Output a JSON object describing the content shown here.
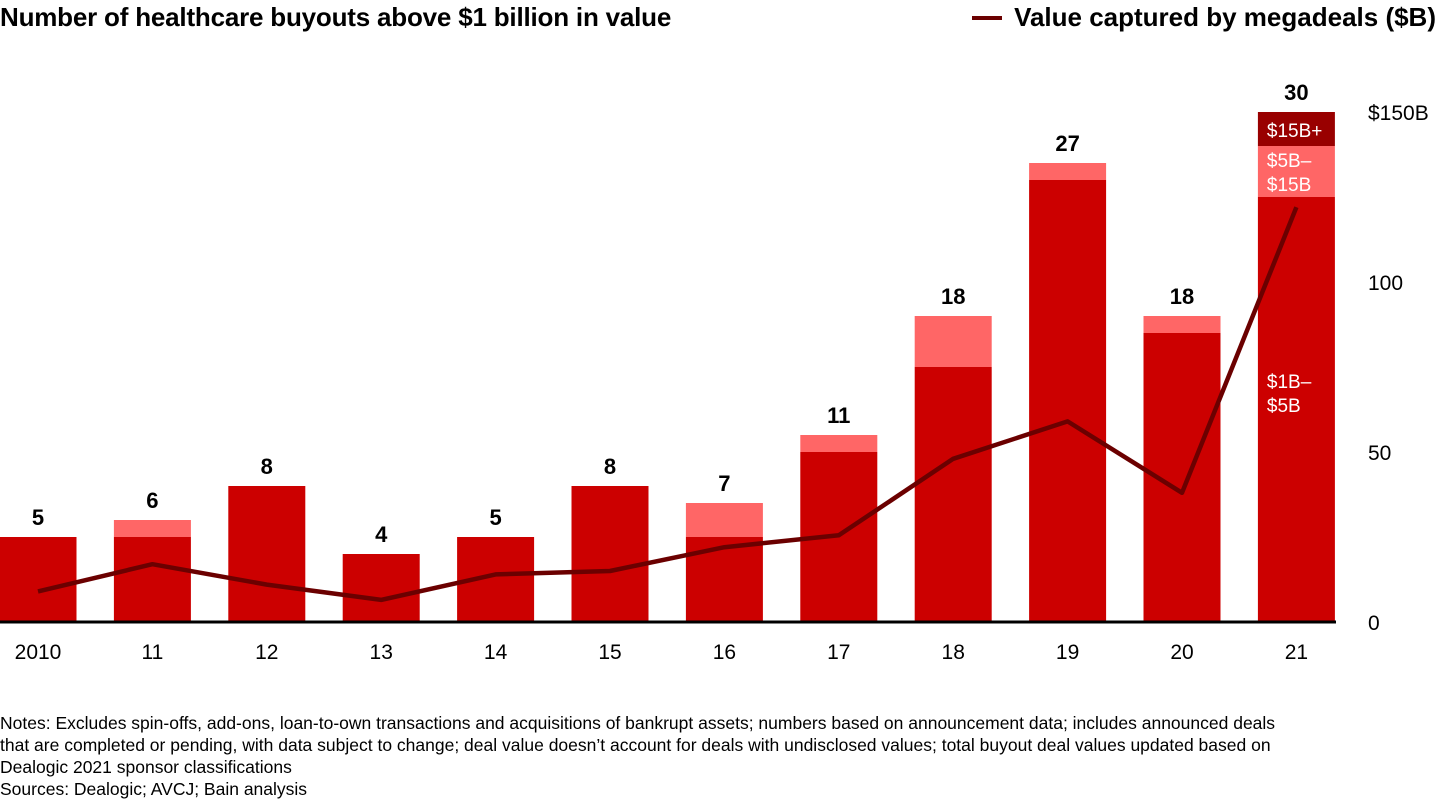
{
  "chart_data": {
    "type": "bar",
    "title": "Number of healthcare buyouts above $1 billion in value",
    "categories": [
      "2010",
      "11",
      "12",
      "13",
      "14",
      "15",
      "16",
      "17",
      "18",
      "19",
      "20",
      "21"
    ],
    "stacked": true,
    "series": [
      {
        "name": "$1B–$5B",
        "label": "$1B–\n$5B",
        "color": "#cc0000",
        "values": [
          5,
          5,
          8,
          4,
          5,
          8,
          5,
          10,
          15,
          26,
          17,
          25
        ]
      },
      {
        "name": "$5B–$15B",
        "label": "$5B–\n$15B",
        "color": "#ff6666",
        "values": [
          0,
          1,
          0,
          0,
          0,
          0,
          2,
          1,
          3,
          1,
          1,
          3
        ]
      },
      {
        "name": "$15B+",
        "label": "$15B+",
        "color": "#990000",
        "values": [
          0,
          0,
          0,
          0,
          0,
          0,
          0,
          0,
          0,
          0,
          0,
          2
        ]
      }
    ],
    "totals": [
      5,
      6,
      8,
      4,
      5,
      8,
      7,
      11,
      18,
      27,
      18,
      30
    ],
    "line_series": {
      "name": "Value captured by megadeals ($B)",
      "color": "#6b0000",
      "axis": "right",
      "values": [
        9,
        17,
        11,
        6.5,
        14,
        15,
        22,
        25.5,
        48,
        59,
        38,
        122
      ]
    },
    "left_ylim": [
      0,
      30
    ],
    "right_axis": {
      "ylim": [
        0,
        150
      ],
      "ticks": [
        0,
        50,
        100,
        150
      ],
      "tick_labels": [
        "0",
        "50",
        "100",
        "$150B"
      ]
    },
    "xlabel": "",
    "ylabel": "",
    "grid": false,
    "legend": {
      "position": "top-right",
      "label": "Value captured by megadeals ($B)"
    }
  },
  "notes": {
    "line1": "Notes: Excludes spin-offs, add-ons, loan-to-own transactions and acquisitions of bankrupt assets; numbers based on announcement data; includes announced deals",
    "line2": "that are completed or pending, with data subject to change; deal value doesn’t account for deals with undisclosed values; total buyout deal values updated based on",
    "line3": "Dealogic 2021 sponsor classifications",
    "sources": "Sources: Dealogic; AVCJ; Bain analysis"
  }
}
